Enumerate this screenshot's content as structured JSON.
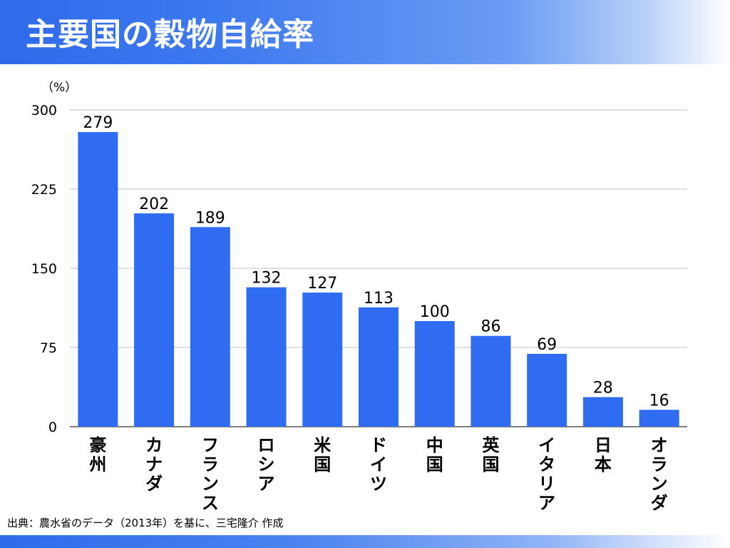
{
  "slide": {
    "title": "主要国の穀物自給率",
    "source": "出典：農水省のデータ（2013年）を基に、三宅隆介 作成"
  },
  "colors": {
    "bar": "#2f6cf2",
    "title_text": "#ffffff",
    "grid": "#bfbfbf"
  },
  "chart_data": {
    "type": "bar",
    "ylabel": "（%）",
    "ylim": [
      0,
      300
    ],
    "yticks": [
      0,
      75,
      150,
      225,
      300
    ],
    "grid": true,
    "categories": [
      "豪州",
      "カナダ",
      "フランス",
      "ロシア",
      "米国",
      "ドイツ",
      "中国",
      "英国",
      "イタリア",
      "日本",
      "オランダ"
    ],
    "values": [
      279,
      202,
      189,
      132,
      127,
      113,
      100,
      86,
      69,
      28,
      16
    ],
    "data_labels": [
      "279",
      "202",
      "189",
      "132",
      "127",
      "113",
      "100",
      "86",
      "69",
      "28",
      "16"
    ]
  }
}
